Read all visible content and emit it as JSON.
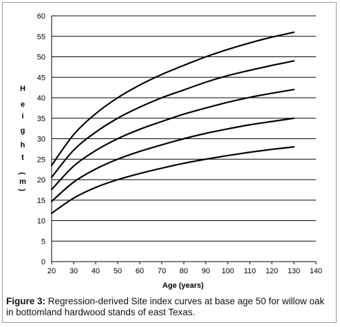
{
  "caption": {
    "label": "Figure 3:",
    "text": " Regression-derived Site index curves at base age 50 for willow oak in bottomland hardwood stands of east Texas."
  },
  "chart_data": {
    "type": "line",
    "title": "",
    "xlabel": "Age (years)",
    "ylabel": "Height (m)",
    "ylabel_glyphs": [
      "H",
      "e",
      "i",
      "g",
      "h",
      "t",
      "(",
      "m",
      ")"
    ],
    "xlim": [
      20,
      140
    ],
    "ylim": [
      0,
      60
    ],
    "xticks": [
      20,
      30,
      40,
      50,
      60,
      70,
      80,
      90,
      100,
      110,
      120,
      130,
      140
    ],
    "yticks": [
      0,
      5,
      10,
      15,
      20,
      25,
      30,
      35,
      40,
      45,
      50,
      55,
      60
    ],
    "grid": "horizontal",
    "legend": "none",
    "line_color": "#000000",
    "x": [
      20,
      30,
      40,
      50,
      60,
      70,
      80,
      90,
      100,
      110,
      120,
      130
    ],
    "series": [
      {
        "values": [
          11.8,
          15.5,
          18.1,
          20.0,
          21.5,
          22.8,
          24.0,
          25.0,
          25.9,
          26.7,
          27.4,
          28.0
        ]
      },
      {
        "values": [
          14.7,
          19.4,
          22.6,
          25.0,
          26.9,
          28.5,
          30.0,
          31.3,
          32.4,
          33.4,
          34.2,
          35.0
        ]
      },
      {
        "values": [
          17.6,
          23.3,
          27.1,
          30.0,
          32.3,
          34.2,
          36.0,
          37.5,
          38.9,
          40.1,
          41.1,
          42.0
        ]
      },
      {
        "values": [
          20.6,
          27.2,
          31.6,
          35.0,
          37.7,
          40.0,
          41.9,
          43.8,
          45.4,
          46.7,
          47.9,
          49.0
        ]
      },
      {
        "values": [
          23.5,
          31.0,
          36.1,
          40.0,
          43.1,
          45.7,
          47.9,
          50.0,
          51.8,
          53.4,
          54.8,
          56.0
        ]
      }
    ]
  }
}
